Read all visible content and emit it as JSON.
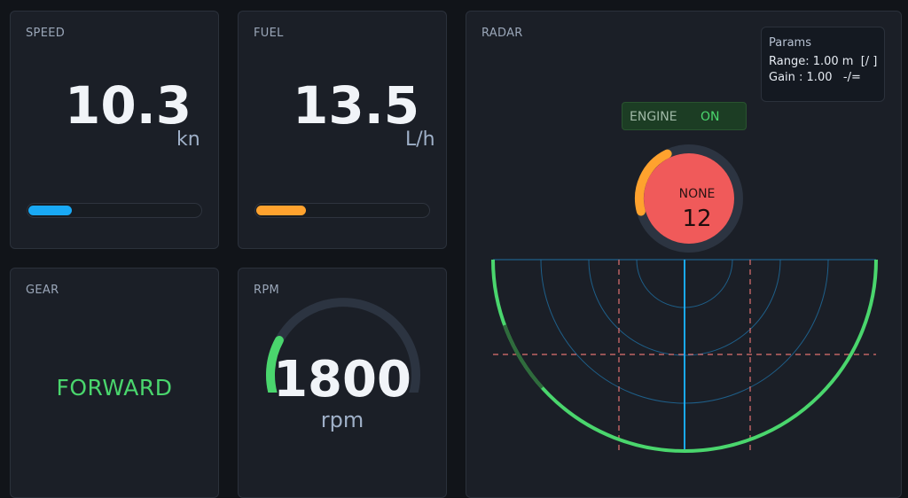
{
  "speed": {
    "title": "SPEED",
    "value": "10.3",
    "unit": "kn",
    "level": 0.25,
    "color": "#19a9f5"
  },
  "fuel": {
    "title": "FUEL",
    "value": "13.5",
    "unit": "L/h",
    "level": 0.29,
    "color": "#ffa22e"
  },
  "gear": {
    "title": "GEAR",
    "value": "FORWARD",
    "color": "#4ad66d"
  },
  "rpm": {
    "title": "RPM",
    "value": "1800",
    "unit": "rpm",
    "level": 0.22,
    "color": "#4ad66d"
  },
  "radar": {
    "title": "RADAR",
    "params": {
      "title": "Params",
      "range_line": "Range: 1.00 m  [/ ]",
      "gain_line": "Gain : 1.00   -/="
    },
    "engine": {
      "label": "ENGINE",
      "state": "ON"
    },
    "target": {
      "label": "NONE",
      "count": "12",
      "ring_level": 0.22,
      "ring_color": "#ffa22e",
      "fill_color": "#f05a5a"
    },
    "sweep_color": "#4ad66d",
    "grid_color": "#1f6fa3",
    "crosshair_color": "#e07070",
    "heading_color": "#19a9f5"
  }
}
